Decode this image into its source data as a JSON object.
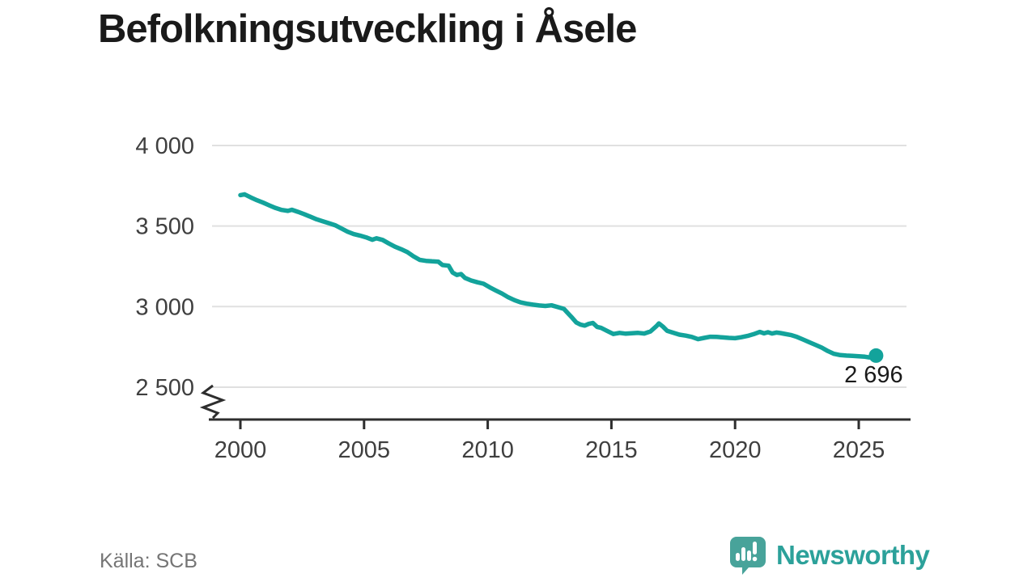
{
  "title": "Befolkningsutveckling i Åsele",
  "source": "Källa: SCB",
  "branding": {
    "name": "Newsworthy"
  },
  "colors": {
    "line": "#13a39b",
    "grid": "#e0e0e0",
    "axis": "#2e2e2e",
    "tick_label": "#3f3f3f",
    "title_text": "#1a1a1a",
    "source_text": "#757575",
    "logo_icon": "#48a39a",
    "logo_text": "#2ca19a"
  },
  "chart_data": {
    "type": "line",
    "title": "Befolkningsutveckling i Åsele",
    "xlabel": "",
    "ylabel": "",
    "x_ticks": [
      2000,
      2005,
      2010,
      2015,
      2020,
      2025
    ],
    "y_ticks": [
      2500,
      3000,
      3500,
      4000
    ],
    "y_tick_labels": [
      "2 500",
      "3 000",
      "3 500",
      "4 000"
    ],
    "ylim": [
      2500,
      4000
    ],
    "xlim": [
      2000,
      2027
    ],
    "grid": "horizontal-only",
    "y_axis_break": true,
    "legend": "none",
    "last_value": 2696,
    "last_point_label": "2 696",
    "series": [
      {
        "name": "Befolkning",
        "color": "#13a39b",
        "points": [
          [
            2000.0,
            3692
          ],
          [
            2000.17,
            3697
          ],
          [
            2000.42,
            3678
          ],
          [
            2000.67,
            3660
          ],
          [
            2000.92,
            3645
          ],
          [
            2001.17,
            3628
          ],
          [
            2001.42,
            3612
          ],
          [
            2001.67,
            3600
          ],
          [
            2001.92,
            3594
          ],
          [
            2002.08,
            3601
          ],
          [
            2002.33,
            3588
          ],
          [
            2002.58,
            3574
          ],
          [
            2002.83,
            3558
          ],
          [
            2003.08,
            3542
          ],
          [
            2003.33,
            3530
          ],
          [
            2003.58,
            3518
          ],
          [
            2003.83,
            3505
          ],
          [
            2004.08,
            3485
          ],
          [
            2004.33,
            3465
          ],
          [
            2004.58,
            3450
          ],
          [
            2004.83,
            3441
          ],
          [
            2005.08,
            3430
          ],
          [
            2005.33,
            3415
          ],
          [
            2005.5,
            3424
          ],
          [
            2005.75,
            3414
          ],
          [
            2006.0,
            3392
          ],
          [
            2006.25,
            3372
          ],
          [
            2006.5,
            3356
          ],
          [
            2006.75,
            3338
          ],
          [
            2007.0,
            3312
          ],
          [
            2007.25,
            3290
          ],
          [
            2007.5,
            3284
          ],
          [
            2007.75,
            3281
          ],
          [
            2008.0,
            3279
          ],
          [
            2008.17,
            3258
          ],
          [
            2008.42,
            3254
          ],
          [
            2008.58,
            3212
          ],
          [
            2008.75,
            3196
          ],
          [
            2008.92,
            3202
          ],
          [
            2009.08,
            3178
          ],
          [
            2009.33,
            3162
          ],
          [
            2009.58,
            3151
          ],
          [
            2009.83,
            3142
          ],
          [
            2010.08,
            3120
          ],
          [
            2010.33,
            3100
          ],
          [
            2010.58,
            3081
          ],
          [
            2010.83,
            3058
          ],
          [
            2011.08,
            3040
          ],
          [
            2011.33,
            3026
          ],
          [
            2011.58,
            3018
          ],
          [
            2011.83,
            3012
          ],
          [
            2012.08,
            3007
          ],
          [
            2012.33,
            3004
          ],
          [
            2012.58,
            3008
          ],
          [
            2012.83,
            2997
          ],
          [
            2013.08,
            2986
          ],
          [
            2013.25,
            2958
          ],
          [
            2013.42,
            2930
          ],
          [
            2013.58,
            2902
          ],
          [
            2013.75,
            2888
          ],
          [
            2013.92,
            2882
          ],
          [
            2014.08,
            2893
          ],
          [
            2014.25,
            2899
          ],
          [
            2014.42,
            2874
          ],
          [
            2014.58,
            2868
          ],
          [
            2014.83,
            2849
          ],
          [
            2015.08,
            2830
          ],
          [
            2015.33,
            2837
          ],
          [
            2015.58,
            2832
          ],
          [
            2015.83,
            2835
          ],
          [
            2016.08,
            2837
          ],
          [
            2016.33,
            2833
          ],
          [
            2016.58,
            2846
          ],
          [
            2016.83,
            2880
          ],
          [
            2016.92,
            2896
          ],
          [
            2017.08,
            2876
          ],
          [
            2017.25,
            2850
          ],
          [
            2017.5,
            2838
          ],
          [
            2017.75,
            2826
          ],
          [
            2018.0,
            2820
          ],
          [
            2018.25,
            2812
          ],
          [
            2018.5,
            2798
          ],
          [
            2018.75,
            2806
          ],
          [
            2019.0,
            2813
          ],
          [
            2019.25,
            2812
          ],
          [
            2019.5,
            2809
          ],
          [
            2019.75,
            2806
          ],
          [
            2020.0,
            2804
          ],
          [
            2020.25,
            2810
          ],
          [
            2020.5,
            2818
          ],
          [
            2020.75,
            2829
          ],
          [
            2021.0,
            2843
          ],
          [
            2021.17,
            2834
          ],
          [
            2021.33,
            2841
          ],
          [
            2021.5,
            2833
          ],
          [
            2021.67,
            2839
          ],
          [
            2021.83,
            2836
          ],
          [
            2022.0,
            2831
          ],
          [
            2022.25,
            2824
          ],
          [
            2022.5,
            2812
          ],
          [
            2022.75,
            2796
          ],
          [
            2023.0,
            2779
          ],
          [
            2023.25,
            2763
          ],
          [
            2023.5,
            2746
          ],
          [
            2023.75,
            2724
          ],
          [
            2024.0,
            2707
          ],
          [
            2024.25,
            2699
          ],
          [
            2024.5,
            2696
          ],
          [
            2024.75,
            2694
          ],
          [
            2025.0,
            2692
          ],
          [
            2025.25,
            2689
          ],
          [
            2025.42,
            2685
          ],
          [
            2025.58,
            2684
          ],
          [
            2025.7,
            2696
          ]
        ]
      }
    ]
  }
}
